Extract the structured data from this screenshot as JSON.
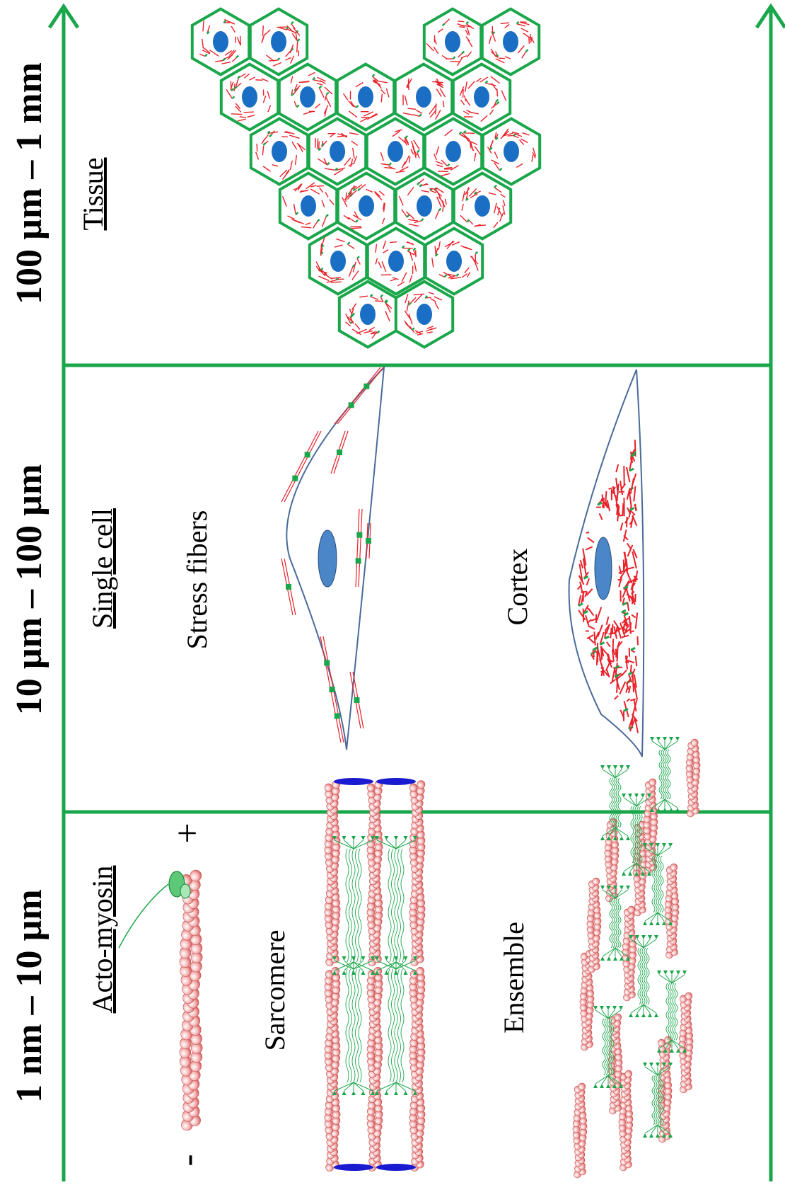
{
  "scales": [
    {
      "label": "1 nm – 10 µm"
    },
    {
      "label": "10 µm – 100 µm"
    },
    {
      "label": "100 µm – 1 mm"
    }
  ],
  "panels": {
    "molecular": {
      "title": "Acto-myosin",
      "minus": "-",
      "plus": "+",
      "sarcomere": "Sarcomere",
      "ensemble": "Ensemble"
    },
    "cell": {
      "title": "Single cell",
      "stress": "Stress fibers",
      "cortex": "Cortex"
    },
    "tissue": {
      "title": "Tissue"
    }
  },
  "colors": {
    "axis": "#1aa64a",
    "actin": "#e8222a",
    "bead": "#f0a0a0",
    "myosin": "#1aa64a",
    "membrane": "#4a6a9a",
    "nucleus_cell": "#4a86c8",
    "nucleus_tissue": "#1a6fc4",
    "zdisc": "#1a1ad0"
  }
}
